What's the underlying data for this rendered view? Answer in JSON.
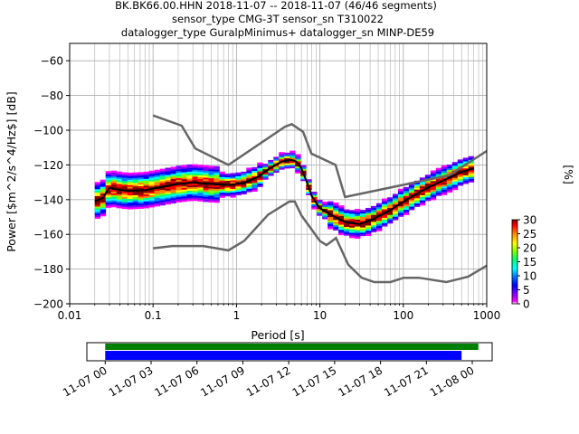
{
  "title_lines": [
    "BK.BK66.00.HHN   2018-11-07 -- 2018-11-07  (46/46 segments)",
    "sensor_type CMG-3T sensor_sn T310022",
    "datalogger_type GuralpMinimus+ datalogger_sn MINP-DE59"
  ],
  "chart_data": {
    "type": "heatmap",
    "xlabel": "Period [s]",
    "ylabel": "Power [$m^2/s^4/Hz$] [dB]",
    "xscale": "log",
    "xlim": [
      0.01,
      1000
    ],
    "ylim": [
      -200,
      -50
    ],
    "x_ticks": [
      {
        "value": 0.01,
        "label": "0.01"
      },
      {
        "value": 0.1,
        "label": "0.1"
      },
      {
        "value": 1,
        "label": "1"
      },
      {
        "value": 10,
        "label": "10"
      },
      {
        "value": 100,
        "label": "100"
      },
      {
        "value": 1000,
        "label": "1000"
      }
    ],
    "y_ticks": [
      {
        "value": -60,
        "label": "−60"
      },
      {
        "value": -80,
        "label": "−80"
      },
      {
        "value": -100,
        "label": "−100"
      },
      {
        "value": -120,
        "label": "−120"
      },
      {
        "value": -140,
        "label": "−140"
      },
      {
        "value": -160,
        "label": "−160"
      },
      {
        "value": -180,
        "label": "−180"
      },
      {
        "value": -200,
        "label": "−200"
      }
    ],
    "grid": true,
    "noise_models": {
      "high": [
        [
          0.1,
          -91.5
        ],
        [
          0.22,
          -97.4
        ],
        [
          0.32,
          -110.5
        ],
        [
          0.8,
          -120
        ],
        [
          3.8,
          -98
        ],
        [
          4.6,
          -96.5
        ],
        [
          6.3,
          -101
        ],
        [
          7.9,
          -113.5
        ],
        [
          15.4,
          -120
        ],
        [
          20,
          -138.5
        ],
        [
          354,
          -126
        ],
        [
          1000,
          -112
        ]
      ],
      "low": [
        [
          0.1,
          -168
        ],
        [
          0.17,
          -166.7
        ],
        [
          0.4,
          -166.7
        ],
        [
          0.8,
          -169.2
        ],
        [
          1.24,
          -163.7
        ],
        [
          2.4,
          -148.6
        ],
        [
          4.3,
          -141.1
        ],
        [
          5,
          -141.1
        ],
        [
          6,
          -149
        ],
        [
          10,
          -163.8
        ],
        [
          12,
          -166.2
        ],
        [
          15.6,
          -162.1
        ],
        [
          21.9,
          -177.5
        ],
        [
          31.6,
          -185
        ],
        [
          45,
          -187.5
        ],
        [
          70,
          -187.5
        ],
        [
          101,
          -185
        ],
        [
          154,
          -185
        ],
        [
          328,
          -187.5
        ],
        [
          600,
          -184.4
        ],
        [
          1000,
          -178
        ]
      ]
    },
    "mode_curve": [
      [
        0.02,
        -141
      ],
      [
        0.025,
        -139
      ],
      [
        0.03,
        -133
      ],
      [
        0.035,
        -134
      ],
      [
        0.05,
        -135
      ],
      [
        0.08,
        -134.5
      ],
      [
        0.12,
        -133
      ],
      [
        0.2,
        -131
      ],
      [
        0.3,
        -130
      ],
      [
        0.5,
        -131
      ],
      [
        0.8,
        -131.5
      ],
      [
        1.2,
        -130.5
      ],
      [
        1.8,
        -127
      ],
      [
        2.5,
        -122
      ],
      [
        3.5,
        -118
      ],
      [
        4.5,
        -117
      ],
      [
        5.2,
        -118
      ],
      [
        6,
        -122
      ],
      [
        7,
        -130
      ],
      [
        8,
        -138
      ],
      [
        10,
        -145
      ],
      [
        14,
        -149
      ],
      [
        20,
        -153
      ],
      [
        30,
        -154
      ],
      [
        45,
        -151
      ],
      [
        70,
        -146
      ],
      [
        110,
        -140
      ],
      [
        180,
        -134
      ],
      [
        300,
        -129
      ],
      [
        500,
        -124
      ],
      [
        700,
        -122
      ]
    ],
    "colorbar": {
      "label": "[%]",
      "min": 0,
      "max": 30,
      "ticks": [
        {
          "value": 0,
          "label": "0"
        },
        {
          "value": 5,
          "label": "5"
        },
        {
          "value": 10,
          "label": "10"
        },
        {
          "value": 15,
          "label": "15"
        },
        {
          "value": 20,
          "label": "20"
        },
        {
          "value": 25,
          "label": "25"
        },
        {
          "value": 30,
          "label": "30"
        }
      ]
    }
  },
  "timeline": {
    "tick_labels": [
      "11-07 00",
      "11-07 03",
      "11-07 06",
      "11-07 09",
      "11-07 12",
      "11-07 15",
      "11-07 18",
      "11-07 21",
      "11-08 00"
    ],
    "axis_start_hours": -1.2,
    "axis_end_hours": 25.3,
    "coverage_green": [
      0,
      24.4
    ],
    "coverage_blue": [
      0,
      23.3
    ],
    "colors": {
      "green": "#008000",
      "blue": "#0000ff"
    }
  },
  "colors": {
    "model_line": "#666666",
    "mode_line": "#000000",
    "grid": "#b0b0b0"
  }
}
